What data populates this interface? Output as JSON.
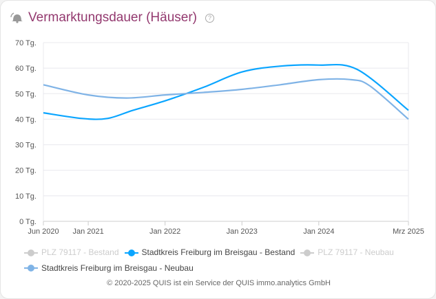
{
  "header": {
    "title": "Vermarktungsdauer (Häuser)",
    "icon": "bell-icon",
    "help_icon": "question-icon",
    "help_label": "?"
  },
  "chart_data": {
    "type": "line",
    "title": "",
    "ylim": [
      0,
      70
    ],
    "y_ticks": [
      0,
      10,
      20,
      30,
      40,
      50,
      60,
      70
    ],
    "y_tick_labels": [
      "0 Tg.",
      "10 Tg.",
      "20 Tg.",
      "30 Tg.",
      "40 Tg.",
      "50 Tg.",
      "60 Tg.",
      "70 Tg."
    ],
    "xlim": [
      "2020-06",
      "2025-03"
    ],
    "x_ticks": [
      "2020-06",
      "2021-01",
      "2022-01",
      "2023-01",
      "2024-01",
      "2025-03"
    ],
    "x_tick_labels": [
      "Jun 2020",
      "Jan 2021",
      "Jan 2022",
      "Jan 2023",
      "Jan 2024",
      "Mrz 2025"
    ],
    "grid": true,
    "legend_position": "bottom",
    "series": [
      {
        "name": "PLZ 79117 - Bestand",
        "color": "#cccccc",
        "visible": false,
        "points": []
      },
      {
        "name": "Stadtkreis Freiburg im Breisgau - Bestand",
        "color": "#0aa5ff",
        "visible": true,
        "points": [
          [
            "2020-06",
            42.5
          ],
          [
            "2020-12",
            40.3
          ],
          [
            "2021-04",
            40.3
          ],
          [
            "2021-08",
            43.5
          ],
          [
            "2022-01",
            47.2
          ],
          [
            "2022-07",
            52.5
          ],
          [
            "2023-01",
            58.5
          ],
          [
            "2023-07",
            60.8
          ],
          [
            "2024-01",
            61.2
          ],
          [
            "2024-07",
            59.5
          ],
          [
            "2025-03",
            43.5
          ]
        ]
      },
      {
        "name": "PLZ 79117 - Neubau",
        "color": "#cccccc",
        "visible": false,
        "points": []
      },
      {
        "name": "Stadtkreis Freiburg im Breisgau - Neubau",
        "color": "#7fb3e6",
        "visible": true,
        "points": [
          [
            "2020-06",
            53.5
          ],
          [
            "2021-01",
            49.5
          ],
          [
            "2021-07",
            48.3
          ],
          [
            "2022-01",
            49.5
          ],
          [
            "2022-07",
            50.5
          ],
          [
            "2023-01",
            51.7
          ],
          [
            "2023-07",
            53.5
          ],
          [
            "2024-01",
            55.5
          ],
          [
            "2024-06",
            55.5
          ],
          [
            "2024-09",
            53
          ],
          [
            "2025-03",
            40
          ]
        ]
      }
    ]
  },
  "footer": {
    "text": "© 2020-2025 QUIS ist ein Service der QUIS immo.analytics GmbH"
  }
}
